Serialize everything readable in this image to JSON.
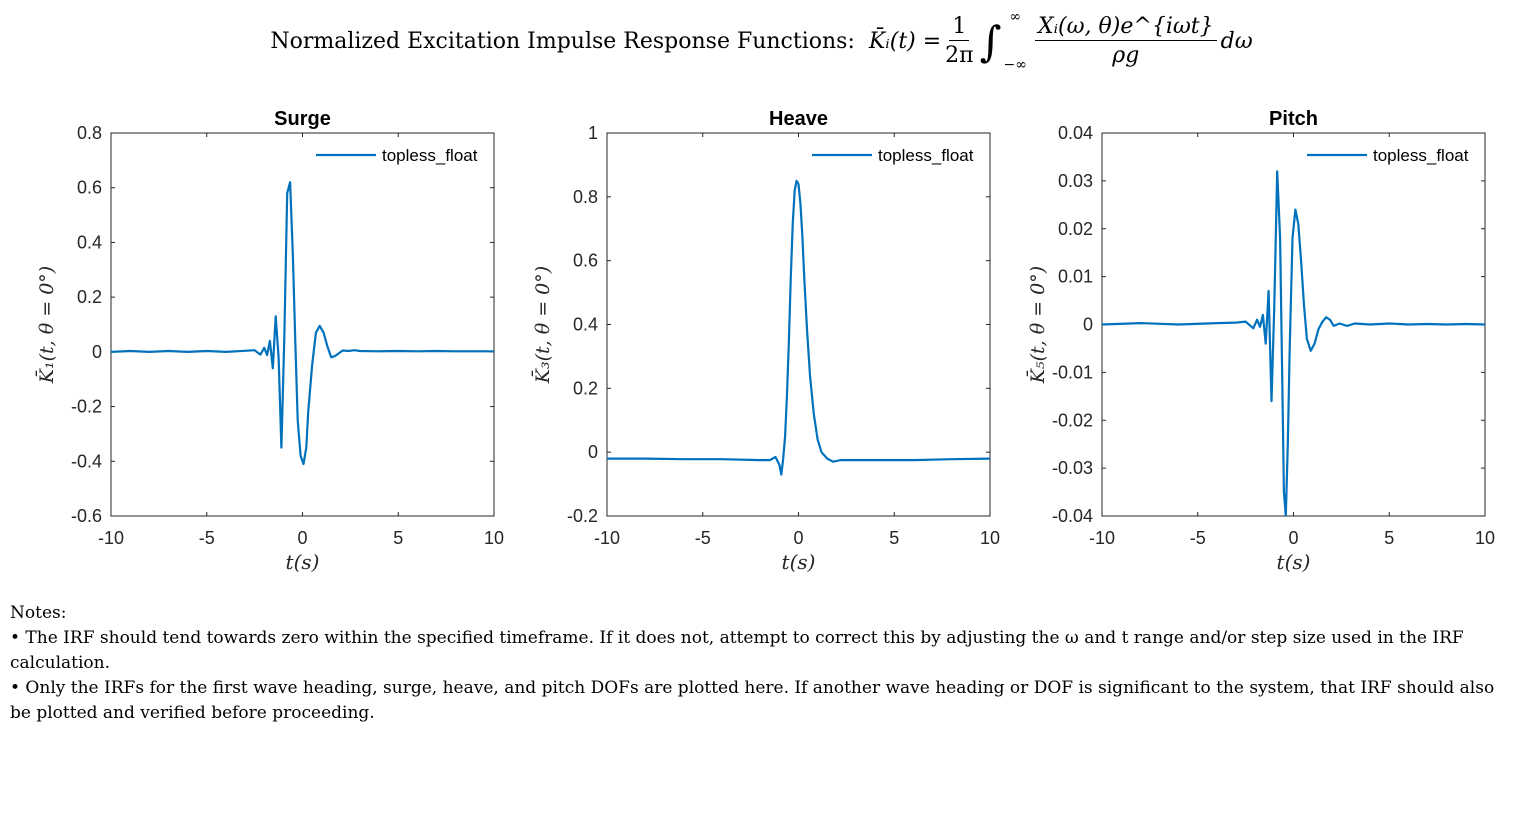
{
  "page": {
    "title_text": "Normalized Excitation Impulse Response Functions:",
    "formula_lhs": "K̄ᵢ(t) =",
    "formula_frac1_num": "1",
    "formula_frac1_den": "2π",
    "formula_int_upper": "∞",
    "formula_int_lower": "−∞",
    "formula_frac2_num": "Xᵢ(ω, θ)e^{iωt}",
    "formula_frac2_den": "ρg",
    "formula_tail": "dω"
  },
  "colors": {
    "series": "#0072BD",
    "axis": "#262626",
    "grid": "none"
  },
  "notes": {
    "heading": "Notes:",
    "items": [
      "• The IRF should tend towards zero within the specified timeframe. If it does not, attempt to correct this by adjusting the ω and t range and/or step size used in the IRF calculation.",
      "• Only the IRFs for the first wave heading, surge, heave, and pitch DOFs are plotted here. If another wave heading or DOF is significant to the system, that IRF should also be plotted and verified before proceeding."
    ]
  },
  "chart_data": [
    {
      "type": "line",
      "title": "Surge",
      "xlabel": "t(s)",
      "ylabel": "K̄₁(t, θ = 0°)",
      "xlim": [
        -10,
        10
      ],
      "ylim": [
        -0.6,
        0.8
      ],
      "xticks": [
        -10,
        -5,
        0,
        5,
        10
      ],
      "yticks": [
        -0.6,
        -0.4,
        -0.2,
        0,
        0.2,
        0.4,
        0.6,
        0.8
      ],
      "legend": "top-right",
      "grid": false,
      "series": [
        {
          "name": "topless_float",
          "x": [
            -10,
            -9,
            -8,
            -7,
            -6,
            -5,
            -4,
            -3,
            -2.5,
            -2.2,
            -2.0,
            -1.85,
            -1.7,
            -1.55,
            -1.4,
            -1.25,
            -1.1,
            -0.95,
            -0.8,
            -0.65,
            -0.5,
            -0.38,
            -0.25,
            -0.1,
            0.05,
            0.2,
            0.3,
            0.5,
            0.7,
            0.9,
            1.1,
            1.3,
            1.5,
            1.7,
            1.9,
            2.1,
            2.4,
            2.7,
            3,
            4,
            5,
            6,
            7,
            8,
            9,
            10
          ],
          "y": [
            0,
            0.003,
            0,
            0.003,
            0,
            0.003,
            0,
            0.004,
            0.006,
            -0.01,
            0.015,
            -0.012,
            0.04,
            -0.06,
            0.13,
            -0.02,
            -0.35,
            0.05,
            0.58,
            0.62,
            0.35,
            0.05,
            -0.25,
            -0.38,
            -0.41,
            -0.35,
            -0.22,
            -0.05,
            0.07,
            0.095,
            0.07,
            0.02,
            -0.02,
            -0.015,
            -0.005,
            0.005,
            0.003,
            0.006,
            0.003,
            0.002,
            0.003,
            0.002,
            0.003,
            0.002,
            0.002,
            0.002
          ]
        }
      ]
    },
    {
      "type": "line",
      "title": "Heave",
      "xlabel": "t(s)",
      "ylabel": "K̄₃(t, θ = 0°)",
      "xlim": [
        -10,
        10
      ],
      "ylim": [
        -0.2,
        1
      ],
      "xticks": [
        -10,
        -5,
        0,
        5,
        10
      ],
      "yticks": [
        -0.2,
        0,
        0.2,
        0.4,
        0.6,
        0.8,
        1
      ],
      "legend": "top-right",
      "grid": false,
      "series": [
        {
          "name": "topless_float",
          "x": [
            -10,
            -8,
            -6,
            -4,
            -2,
            -1.5,
            -1.2,
            -1.0,
            -0.9,
            -0.8,
            -0.7,
            -0.6,
            -0.5,
            -0.4,
            -0.3,
            -0.2,
            -0.1,
            0,
            0.1,
            0.2,
            0.3,
            0.45,
            0.6,
            0.8,
            1.0,
            1.2,
            1.5,
            1.8,
            2.2,
            3,
            4,
            6,
            8,
            10
          ],
          "y": [
            -0.02,
            -0.02,
            -0.022,
            -0.022,
            -0.025,
            -0.025,
            -0.015,
            -0.04,
            -0.07,
            -0.02,
            0.05,
            0.18,
            0.35,
            0.55,
            0.72,
            0.82,
            0.85,
            0.84,
            0.78,
            0.68,
            0.55,
            0.38,
            0.24,
            0.12,
            0.04,
            0.0,
            -0.02,
            -0.03,
            -0.025,
            -0.025,
            -0.025,
            -0.025,
            -0.022,
            -0.02
          ]
        }
      ]
    },
    {
      "type": "line",
      "title": "Pitch",
      "xlabel": "t(s)",
      "ylabel": "K̄₅(t, θ = 0°)",
      "xlim": [
        -10,
        10
      ],
      "ylim": [
        -0.04,
        0.04
      ],
      "xticks": [
        -10,
        -5,
        0,
        5,
        10
      ],
      "yticks": [
        -0.04,
        -0.03,
        -0.02,
        -0.01,
        0,
        0.01,
        0.02,
        0.03,
        0.04
      ],
      "legend": "top-right",
      "grid": false,
      "series": [
        {
          "name": "topless_float",
          "x": [
            -10,
            -8,
            -6,
            -4,
            -3,
            -2.5,
            -2.1,
            -1.9,
            -1.75,
            -1.6,
            -1.45,
            -1.3,
            -1.15,
            -1.0,
            -0.85,
            -0.7,
            -0.6,
            -0.5,
            -0.4,
            -0.3,
            -0.2,
            -0.05,
            0.1,
            0.25,
            0.4,
            0.55,
            0.7,
            0.9,
            1.1,
            1.3,
            1.5,
            1.7,
            1.9,
            2.1,
            2.4,
            2.8,
            3.2,
            4,
            5,
            6,
            7,
            8,
            9,
            10
          ],
          "y": [
            0.0,
            0.0003,
            0.0,
            0.0003,
            0.0004,
            0.0006,
            -0.0008,
            0.001,
            -0.0005,
            0.002,
            -0.004,
            0.007,
            -0.016,
            0.004,
            0.032,
            0.018,
            -0.008,
            -0.035,
            -0.04,
            -0.025,
            -0.005,
            0.018,
            0.024,
            0.021,
            0.013,
            0.004,
            -0.003,
            -0.0055,
            -0.004,
            -0.001,
            0.0005,
            0.0015,
            0.001,
            -0.0003,
            0.0002,
            -0.0003,
            0.0002,
            0.0,
            0.0002,
            0.0,
            0.0001,
            0.0,
            0.0001,
            0.0
          ]
        }
      ]
    }
  ]
}
